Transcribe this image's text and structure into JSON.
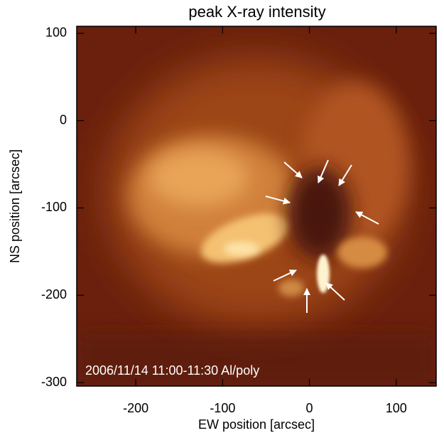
{
  "chart_data": {
    "type": "image",
    "title": "peak X-ray intensity",
    "x_label": "EW position [arcsec]",
    "y_label": "NS position [arcsec]",
    "annotation": "2006/11/14 11:00-11:30 Al/poly",
    "xlim": [
      -268,
      146
    ],
    "xticks": [
      -200,
      -100,
      0,
      100
    ],
    "ylim": [
      -304,
      108
    ],
    "yticks": [
      -300,
      -200,
      -100,
      0,
      100
    ]
  }
}
